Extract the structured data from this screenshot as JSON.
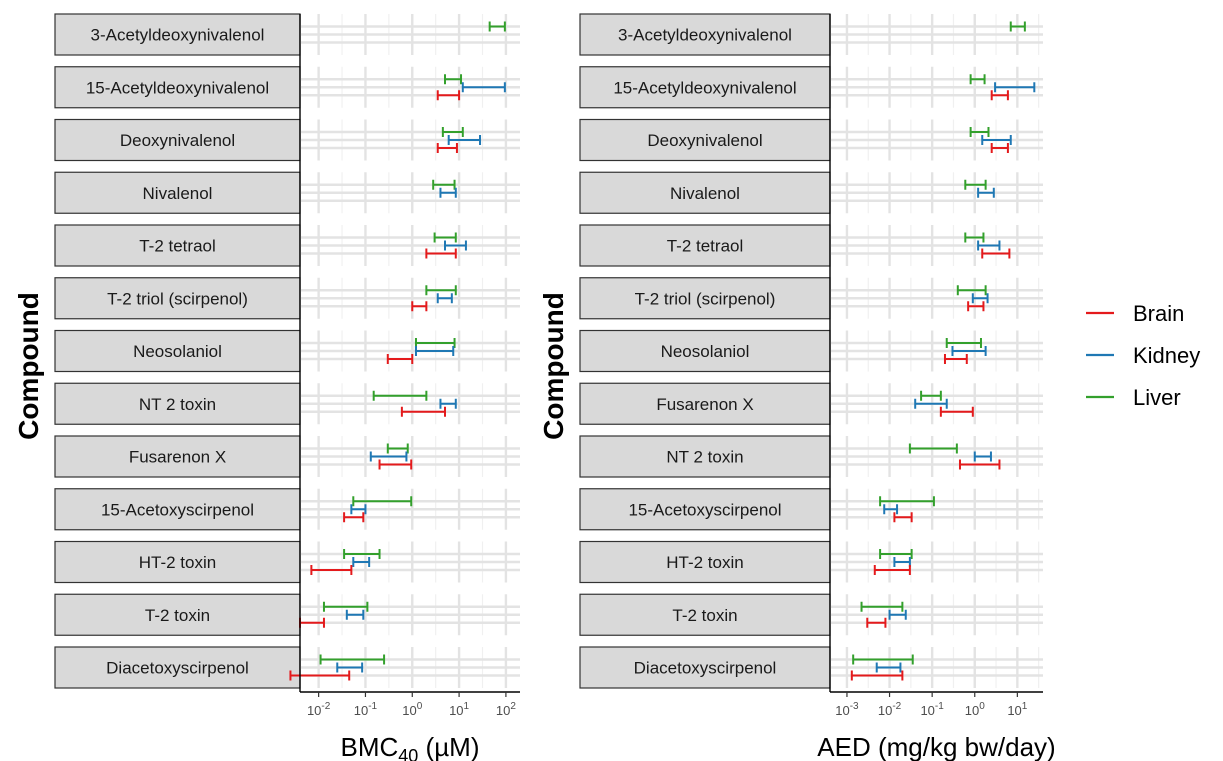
{
  "colors": {
    "Brain": "#e41a1c",
    "Kidney": "#1f78b4",
    "Liver": "#33a02c"
  },
  "legend": [
    "Brain",
    "Kidney",
    "Liver"
  ],
  "chart_data": [
    {
      "type": "errorbar",
      "id": "bmc",
      "xlabel": "BMC",
      "xlabel_sub": "40",
      "xlabel_unit": " (µM)",
      "ylabel": "Compound",
      "xscale": "log10",
      "xlim": [
        0.004,
        200
      ],
      "xticks": [
        0.01,
        0.1,
        1,
        10,
        100
      ],
      "xtick_labels": [
        [
          "10",
          "-2"
        ],
        [
          "10",
          "-1"
        ],
        [
          "10",
          "0"
        ],
        [
          "10",
          "1"
        ],
        [
          "10",
          "2"
        ]
      ],
      "panels": [
        {
          "compound": "3-Acetyldeoxynivalenol",
          "series": {
            "Liver": [
              45,
              95
            ]
          }
        },
        {
          "compound": "15-Acetyldeoxynivalenol",
          "series": {
            "Brain": [
              3.5,
              10
            ],
            "Kidney": [
              12,
              95
            ],
            "Liver": [
              5,
              11
            ]
          }
        },
        {
          "compound": "Deoxynivalenol",
          "series": {
            "Brain": [
              3.5,
              9
            ],
            "Kidney": [
              6,
              28
            ],
            "Liver": [
              4.5,
              12
            ]
          }
        },
        {
          "compound": "Nivalenol",
          "series": {
            "Kidney": [
              4,
              8.5
            ],
            "Liver": [
              2.8,
              8
            ]
          }
        },
        {
          "compound": "T-2 tetraol",
          "series": {
            "Brain": [
              2,
              8.5
            ],
            "Kidney": [
              5,
              14
            ],
            "Liver": [
              3,
              8.5
            ]
          }
        },
        {
          "compound": "T-2 triol (scirpenol)",
          "series": {
            "Brain": [
              1,
              2
            ],
            "Kidney": [
              3.5,
              7
            ],
            "Liver": [
              2,
              8.5
            ]
          }
        },
        {
          "compound": "Neosolaniol",
          "series": {
            "Brain": [
              0.3,
              1
            ],
            "Kidney": [
              1.2,
              7.5
            ],
            "Liver": [
              1.2,
              8
            ]
          }
        },
        {
          "compound": "NT 2 toxin",
          "series": {
            "Brain": [
              0.6,
              5
            ],
            "Kidney": [
              4,
              8.5
            ],
            "Liver": [
              0.15,
              2
            ]
          }
        },
        {
          "compound": "Fusarenon X",
          "series": {
            "Brain": [
              0.2,
              0.95
            ],
            "Kidney": [
              0.13,
              0.75
            ],
            "Liver": [
              0.3,
              0.8
            ]
          }
        },
        {
          "compound": "15-Acetoxyscirpenol",
          "series": {
            "Brain": [
              0.035,
              0.09
            ],
            "Kidney": [
              0.05,
              0.1
            ],
            "Liver": [
              0.055,
              0.95
            ]
          }
        },
        {
          "compound": "HT-2 toxin",
          "series": {
            "Brain": [
              0.007,
              0.05
            ],
            "Kidney": [
              0.055,
              0.12
            ],
            "Liver": [
              0.035,
              0.2
            ]
          }
        },
        {
          "compound": "T-2 toxin",
          "series": {
            "Brain": [
              0.004,
              0.013
            ],
            "Kidney": [
              0.04,
              0.09
            ],
            "Liver": [
              0.013,
              0.11
            ]
          }
        },
        {
          "compound": "Diacetoxyscirpenol",
          "series": {
            "Brain": [
              0.0025,
              0.045
            ],
            "Kidney": [
              0.025,
              0.085
            ],
            "Liver": [
              0.011,
              0.25
            ]
          }
        }
      ]
    },
    {
      "type": "errorbar",
      "id": "aed",
      "xlabel": "AED (mg/kg bw/day)",
      "xlabel_sub": "",
      "xlabel_unit": "",
      "ylabel": "Compound",
      "xscale": "log10",
      "xlim": [
        0.0004,
        40
      ],
      "xticks": [
        0.001,
        0.01,
        0.1,
        1,
        10
      ],
      "xtick_labels": [
        [
          "10",
          "-3"
        ],
        [
          "10",
          "-2"
        ],
        [
          "10",
          "-1"
        ],
        [
          "10",
          "0"
        ],
        [
          "10",
          "1"
        ]
      ],
      "panels": [
        {
          "compound": "3-Acetyldeoxynivalenol",
          "series": {
            "Liver": [
              7,
              15
            ]
          }
        },
        {
          "compound": "15-Acetyldeoxynivalenol",
          "series": {
            "Brain": [
              2.5,
              6
            ],
            "Kidney": [
              3,
              25
            ],
            "Liver": [
              0.8,
              1.7
            ]
          }
        },
        {
          "compound": "Deoxynivalenol",
          "series": {
            "Brain": [
              2.5,
              6
            ],
            "Kidney": [
              1.5,
              7
            ],
            "Liver": [
              0.8,
              2.1
            ]
          }
        },
        {
          "compound": "Nivalenol",
          "series": {
            "Kidney": [
              1.2,
              2.8
            ],
            "Liver": [
              0.6,
              1.8
            ]
          }
        },
        {
          "compound": "T-2 tetraol",
          "series": {
            "Brain": [
              1.5,
              6.5
            ],
            "Kidney": [
              1.2,
              3.8
            ],
            "Liver": [
              0.6,
              1.6
            ]
          }
        },
        {
          "compound": "T-2 triol (scirpenol)",
          "series": {
            "Brain": [
              0.7,
              1.6
            ],
            "Kidney": [
              0.9,
              2
            ],
            "Liver": [
              0.4,
              1.8
            ]
          }
        },
        {
          "compound": "Neosolaniol",
          "series": {
            "Brain": [
              0.2,
              0.65
            ],
            "Kidney": [
              0.3,
              1.8
            ],
            "Liver": [
              0.22,
              1.4
            ]
          }
        },
        {
          "compound": "Fusarenon X",
          "series": {
            "Brain": [
              0.16,
              0.9
            ],
            "Kidney": [
              0.04,
              0.22
            ],
            "Liver": [
              0.055,
              0.16
            ]
          }
        },
        {
          "compound": "NT 2 toxin",
          "series": {
            "Brain": [
              0.45,
              3.8
            ],
            "Kidney": [
              1,
              2.4
            ],
            "Liver": [
              0.03,
              0.38
            ]
          }
        },
        {
          "compound": "15-Acetoxyscirpenol",
          "series": {
            "Brain": [
              0.013,
              0.033
            ],
            "Kidney": [
              0.0075,
              0.015
            ],
            "Liver": [
              0.006,
              0.11
            ]
          }
        },
        {
          "compound": "HT-2 toxin",
          "series": {
            "Brain": [
              0.0045,
              0.03
            ],
            "Kidney": [
              0.013,
              0.03
            ],
            "Liver": [
              0.006,
              0.033
            ]
          }
        },
        {
          "compound": "T-2 toxin",
          "series": {
            "Brain": [
              0.003,
              0.008
            ],
            "Kidney": [
              0.01,
              0.024
            ],
            "Liver": [
              0.0022,
              0.02
            ]
          }
        },
        {
          "compound": "Diacetoxyscirpenol",
          "series": {
            "Brain": [
              0.0013,
              0.02
            ],
            "Kidney": [
              0.005,
              0.018
            ],
            "Liver": [
              0.0014,
              0.035
            ]
          }
        }
      ]
    }
  ]
}
